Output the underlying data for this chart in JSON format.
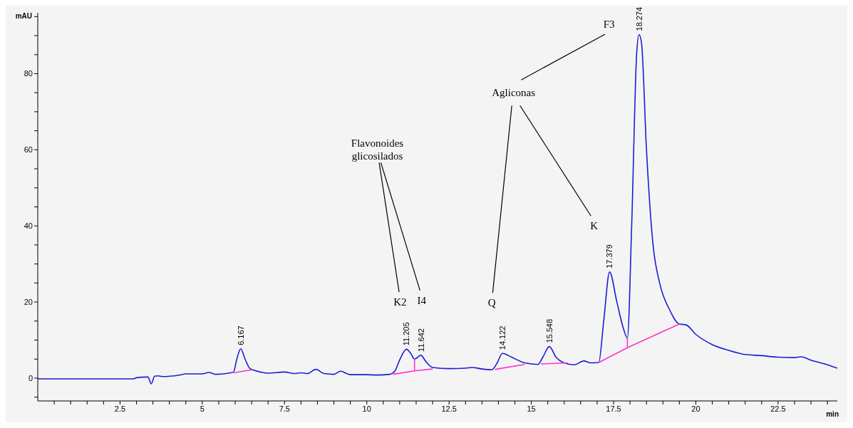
{
  "chart_data": {
    "type": "line",
    "xlabel": "min",
    "ylabel": "mAU",
    "xlim": [
      0,
      24.3
    ],
    "ylim": [
      -6,
      96
    ],
    "xticks": [
      {
        "value": 0.5,
        "label": null
      },
      {
        "value": 1,
        "label": null
      },
      {
        "value": 1.5,
        "label": null
      },
      {
        "value": 2,
        "label": null
      },
      2.5,
      {
        "value": 3,
        "label": null
      },
      {
        "value": 3.5,
        "label": null
      },
      {
        "value": 4,
        "label": null
      },
      {
        "value": 4.5,
        "label": null
      },
      5,
      {
        "value": 5.5,
        "label": null
      },
      {
        "value": 6,
        "label": null
      },
      {
        "value": 6.5,
        "label": null
      },
      {
        "value": 7,
        "label": null
      },
      7.5,
      {
        "value": 8,
        "label": null
      },
      {
        "value": 8.5,
        "label": null
      },
      {
        "value": 9,
        "label": null
      },
      {
        "value": 9.5,
        "label": null
      },
      10,
      {
        "value": 10.5,
        "label": null
      },
      {
        "value": 11,
        "label": null
      },
      {
        "value": 11.5,
        "label": null
      },
      {
        "value": 12,
        "label": null
      },
      12.5,
      {
        "value": 13,
        "label": null
      },
      {
        "value": 13.5,
        "label": null
      },
      {
        "value": 14,
        "label": null
      },
      {
        "value": 14.5,
        "label": null
      },
      15,
      {
        "value": 15.5,
        "label": null
      },
      {
        "value": 16,
        "label": null
      },
      {
        "value": 16.5,
        "label": null
      },
      {
        "value": 17,
        "label": null
      },
      17.5,
      {
        "value": 18,
        "label": null
      },
      {
        "value": 18.5,
        "label": null
      },
      {
        "value": 19,
        "label": null
      },
      {
        "value": 19.5,
        "label": null
      },
      20,
      {
        "value": 20.5,
        "label": null
      },
      {
        "value": 21,
        "label": null
      },
      {
        "value": 21.5,
        "label": null
      },
      {
        "value": 22,
        "label": null
      },
      22.5,
      {
        "value": 23,
        "label": null
      },
      {
        "value": 23.5,
        "label": null
      },
      {
        "value": 24,
        "label": null
      }
    ],
    "yticks": [
      {
        "value": -5,
        "label": null
      },
      0,
      {
        "value": 5,
        "label": null
      },
      {
        "value": 10,
        "label": null
      },
      {
        "value": 15,
        "label": null
      },
      20,
      {
        "value": 25,
        "label": null
      },
      {
        "value": 30,
        "label": null
      },
      {
        "value": 35,
        "label": null
      },
      40,
      {
        "value": 45,
        "label": null
      },
      {
        "value": 50,
        "label": null
      },
      {
        "value": 55,
        "label": null
      },
      60,
      {
        "value": 65,
        "label": null
      },
      {
        "value": 70,
        "label": null
      },
      {
        "value": 75,
        "label": null
      },
      80,
      {
        "value": 85,
        "label": null
      },
      {
        "value": 90,
        "label": null
      },
      {
        "value": 95,
        "label": null
      }
    ],
    "marker": "none",
    "line_style": "solid",
    "series": [
      {
        "color": "#1c1cd4",
        "x": [
          0,
          2.9,
          3.0,
          3.35,
          3.45,
          3.55,
          3.65,
          3.8,
          4.3,
          4.5,
          5.0,
          5.2,
          5.4,
          5.8,
          5.95,
          6.05,
          6.167,
          6.3,
          6.45,
          6.6,
          7.0,
          7.5,
          7.8,
          8.0,
          8.2,
          8.45,
          8.7,
          9.0,
          9.2,
          9.5,
          10.0,
          10.3,
          10.7,
          10.85,
          11.0,
          11.205,
          11.35,
          11.45,
          11.642,
          11.8,
          12.0,
          12.5,
          13.0,
          13.2,
          13.5,
          13.8,
          13.95,
          14.122,
          14.4,
          14.8,
          15.2,
          15.35,
          15.548,
          15.75,
          16.0,
          16.3,
          16.6,
          16.8,
          17.05,
          17.2,
          17.379,
          17.6,
          17.8,
          17.92,
          18.05,
          18.2,
          18.274,
          18.35,
          18.5,
          18.7,
          18.9,
          19.2,
          19.5,
          19.7,
          20.0,
          20.5,
          21.0,
          21.5,
          22.0,
          22.5,
          23.0,
          23.2,
          23.5,
          24.0,
          24.3
        ],
        "values": [
          -0.2,
          -0.2,
          0.1,
          0.3,
          -1.5,
          0.5,
          0.6,
          0.4,
          0.8,
          1.1,
          1.1,
          1.5,
          1.0,
          1.3,
          1.6,
          5,
          7.7,
          5,
          2.5,
          2.0,
          1.3,
          1.6,
          1.2,
          1.4,
          1.2,
          2.3,
          1.2,
          1.0,
          1.8,
          0.9,
          0.9,
          0.8,
          1.0,
          1.8,
          4.8,
          7.6,
          6.3,
          5.0,
          6.0,
          4.3,
          2.8,
          2.5,
          2.6,
          2.8,
          2.4,
          2.2,
          3.8,
          6.5,
          5.5,
          4.0,
          3.6,
          5.5,
          8.3,
          5.5,
          4.0,
          3.5,
          4.5,
          4.0,
          4.1,
          15,
          27.9,
          20,
          13,
          10.5,
          40,
          85,
          90.3,
          88,
          60,
          35,
          25,
          18,
          14.2,
          14,
          11.5,
          8.8,
          7.3,
          6.2,
          5.9,
          5.5,
          5.4,
          5.6,
          4.7,
          3.5,
          2.6
        ]
      },
      {
        "color": "#ff33cc",
        "x": [
          5.95,
          6.5,
          6.6,
          10.8,
          11.45,
          11.45,
          11.45,
          12.0,
          12.1,
          13.9,
          14.8,
          14.9,
          15.3,
          16.1,
          16.2,
          17.05,
          17.92,
          17.92,
          17.92,
          19.5
        ],
        "values": [
          1.4,
          2.2,
          null,
          1.0,
          1.9,
          5.0,
          1.9,
          2.4,
          null,
          2.3,
          3.6,
          null,
          3.7,
          4.0,
          null,
          4.1,
          8.0,
          10.5,
          8.0,
          14.2
        ]
      }
    ],
    "annotations": [
      {
        "text": "6.167",
        "x": 6.167,
        "y": 7.7
      },
      {
        "text": "11.205",
        "x": 11.205,
        "y": 7.6
      },
      {
        "text": "11.642",
        "x": 11.642,
        "y": 6.0
      },
      {
        "text": "14.122",
        "x": 14.122,
        "y": 6.5
      },
      {
        "text": "15.548",
        "x": 15.548,
        "y": 8.3
      },
      {
        "text": "17.379",
        "x": 17.379,
        "y": 27.9
      },
      {
        "text": "18.274",
        "x": 18.274,
        "y": 90.3
      },
      "Flavonoides glicosilados",
      "Agliconas",
      "F3",
      "K2",
      "I4",
      "Q",
      "K"
    ]
  }
}
